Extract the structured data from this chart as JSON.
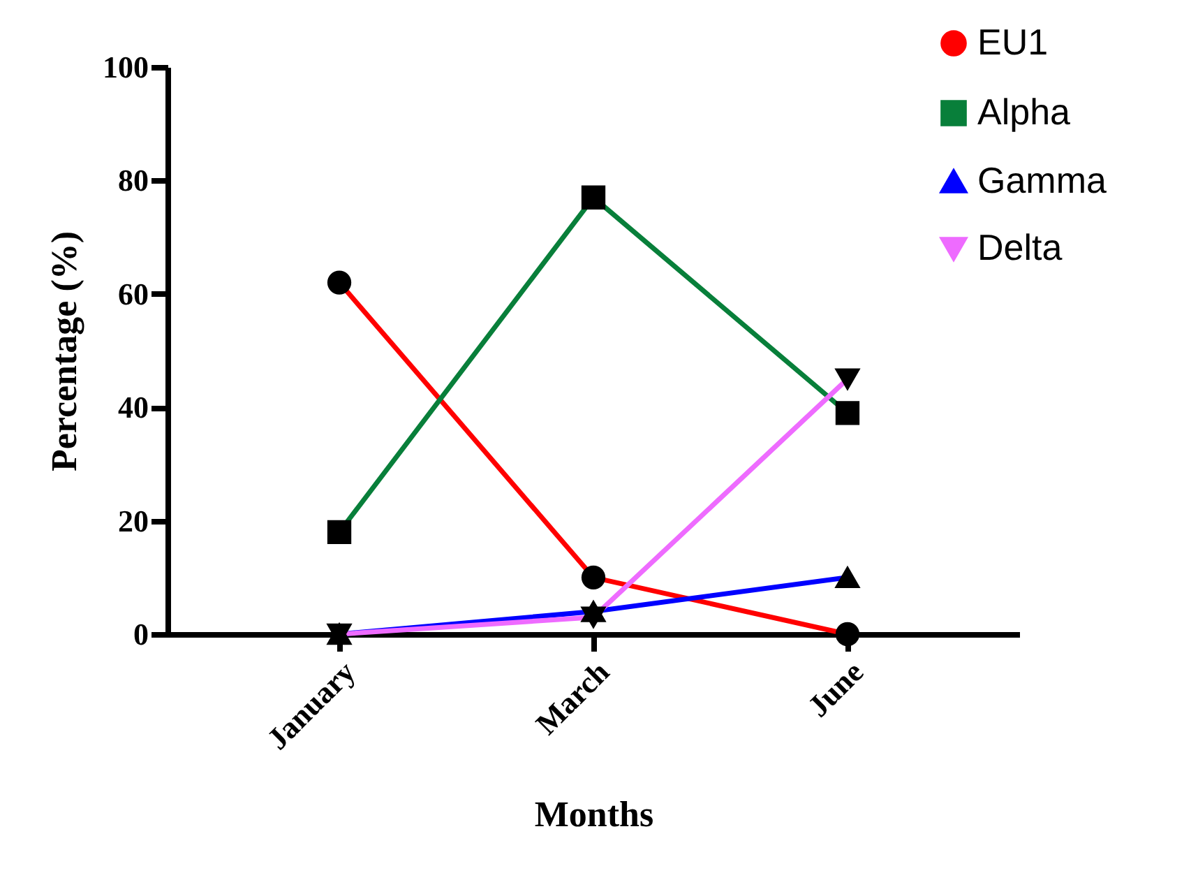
{
  "chart_data": {
    "type": "line",
    "xlabel": "Months",
    "ylabel": "Percentage (%)",
    "categories": [
      "January",
      "March",
      "June"
    ],
    "series": [
      {
        "name": "EU1",
        "color": "#ff0000",
        "marker": "circle",
        "values": [
          62,
          10,
          0
        ]
      },
      {
        "name": "Alpha",
        "color": "#087f3a",
        "marker": "square",
        "values": [
          18,
          77,
          39
        ]
      },
      {
        "name": "Gamma",
        "color": "#0000ff",
        "marker": "triangle",
        "values": [
          0,
          4,
          10
        ]
      },
      {
        "name": "Delta",
        "color": "#ee6bff",
        "marker": "triangle-down",
        "values": [
          0,
          3,
          45
        ]
      }
    ],
    "ylim": [
      0,
      100
    ],
    "yticks": [
      0,
      20,
      40,
      60,
      80,
      100
    ],
    "grid": false,
    "legend": "top right",
    "line_style": "solid"
  }
}
